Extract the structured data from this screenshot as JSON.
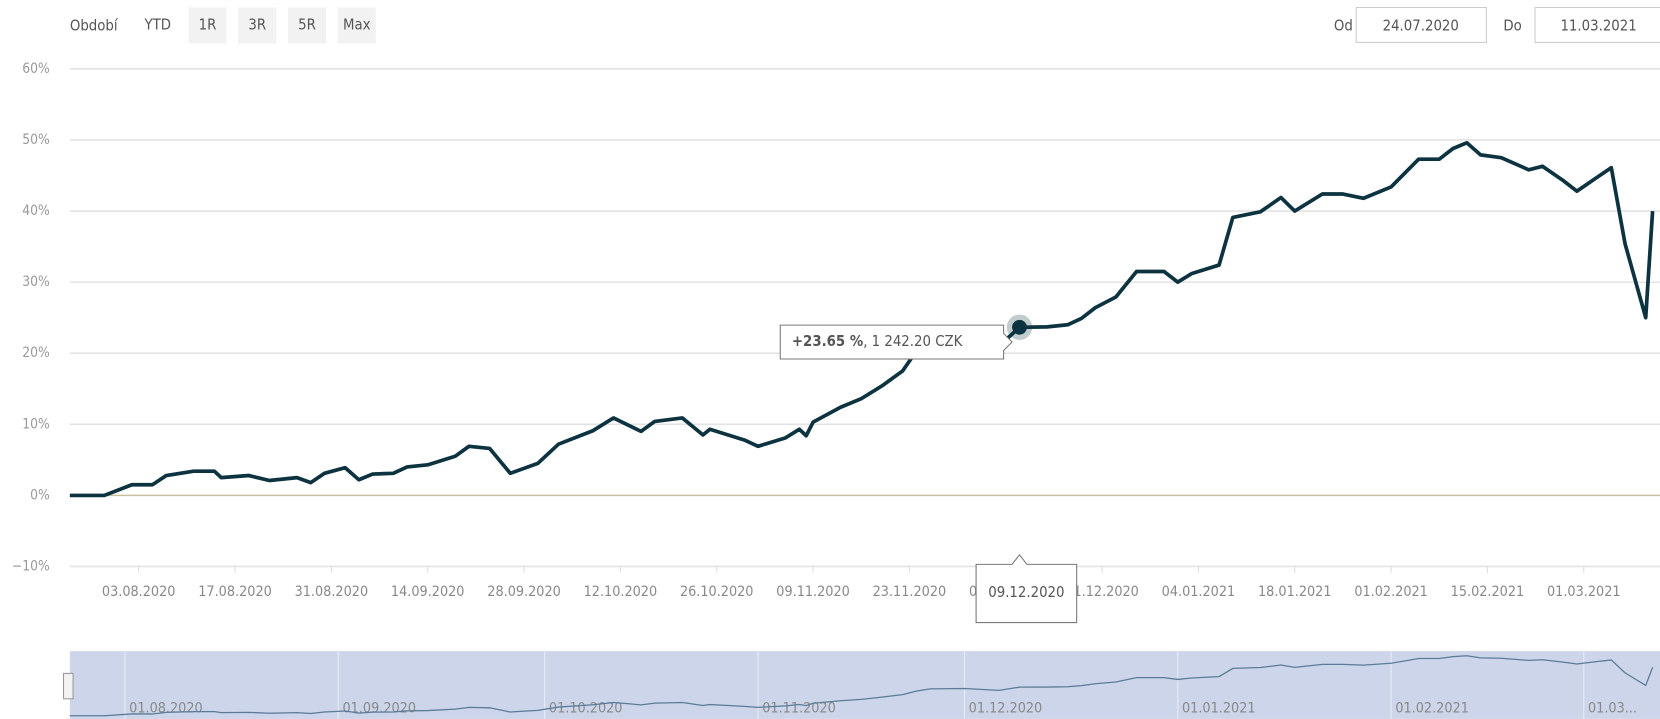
{
  "controls": {
    "period_label": "Období",
    "buttons": [
      "YTD",
      "1R",
      "3R",
      "5R",
      "Max"
    ],
    "active_button": "YTD",
    "from_label": "Od",
    "from": "24.07.2020",
    "to_label": "Do",
    "to": "11.03.2021"
  },
  "chart_data": {
    "type": "line",
    "x": [
      "24.07.2020",
      "29.07.2020",
      "02.08.2020",
      "05.08.2020",
      "07.08.2020",
      "11.08.2020",
      "14.08.2020",
      "15.08.2020",
      "19.08.2020",
      "22.08.2020",
      "26.08.2020",
      "28.08.2020",
      "30.08.2020",
      "02.09.2020",
      "04.09.2020",
      "06.09.2020",
      "09.09.2020",
      "11.09.2020",
      "14.09.2020",
      "18.09.2020",
      "20.09.2020",
      "23.09.2020",
      "26.09.2020",
      "30.09.2020",
      "03.10.2020",
      "08.10.2020",
      "11.10.2020",
      "15.10.2020",
      "17.10.2020",
      "21.10.2020",
      "24.10.2020",
      "25.10.2020",
      "30.10.2020",
      "01.11.2020",
      "05.11.2020",
      "07.11.2020",
      "08.11.2020",
      "09.11.2020",
      "13.11.2020",
      "16.11.2020",
      "19.11.2020",
      "22.11.2020",
      "24.11.2020",
      "26.11.2020",
      "01.12.2020",
      "06.12.2020",
      "09.12.2020",
      "13.12.2020",
      "16.12.2020",
      "18.12.2020",
      "20.12.2020",
      "23.12.2020",
      "26.12.2020",
      "30.12.2020",
      "01.01.2021",
      "03.01.2021",
      "07.01.2021",
      "09.01.2021",
      "13.01.2021",
      "16.01.2021",
      "18.01.2021",
      "22.01.2021",
      "25.01.2021",
      "28.01.2021",
      "01.02.2021",
      "05.02.2021",
      "08.02.2021",
      "10.02.2021",
      "12.02.2021",
      "14.02.2021",
      "17.02.2021",
      "21.02.2021",
      "23.02.2021",
      "26.02.2021",
      "28.02.2021",
      "03.03.2021",
      "05.03.2021",
      "07.03.2021",
      "10.03.2021",
      "11.03.2021"
    ],
    "series": [
      {
        "color": "#0d3340",
        "values": [
          0,
          0,
          1.5,
          1.5,
          2.8,
          3.4,
          3.4,
          2.5,
          2.8,
          2.1,
          2.5,
          1.8,
          3.1,
          3.9,
          2.2,
          3.0,
          3.1,
          4.0,
          4.3,
          5.5,
          6.9,
          6.6,
          3.1,
          4.5,
          7.2,
          9.1,
          10.9,
          9.0,
          10.4,
          10.9,
          8.5,
          9.3,
          7.8,
          6.9,
          8.1,
          9.3,
          8.4,
          10.3,
          12.4,
          13.6,
          15.4,
          17.5,
          20.3,
          22.2,
          22.5,
          21.0,
          23.65,
          23.7,
          24.0,
          24.9,
          26.4,
          27.9,
          31.5,
          31.5,
          30.0,
          31.2,
          32.4,
          39.1,
          39.9,
          41.9,
          40.0,
          42.4,
          42.4,
          41.8,
          43.4,
          47.3,
          47.3,
          48.8,
          49.6,
          47.9,
          47.5,
          45.8,
          46.3,
          44.3,
          42.8,
          44.8,
          46.1,
          35.4,
          25.0,
          40.0
        ]
      }
    ],
    "xlim": [
      "24.07.2020",
      "11.03.2021"
    ],
    "xticks": [
      "03.08.2020",
      "17.08.2020",
      "31.08.2020",
      "14.09.2020",
      "28.09.2020",
      "12.10.2020",
      "26.10.2020",
      "09.11.2020",
      "23.11.2020",
      "07.12.2020",
      "21.12.2020",
      "04.01.2021",
      "18.01.2021",
      "01.02.2021",
      "15.02.2021",
      "01.03.2021"
    ],
    "ylim": [
      -10,
      60
    ],
    "yticks": [
      {
        "value": -10,
        "label": "−10%"
      },
      {
        "value": 0,
        "label": "0%"
      },
      {
        "value": 10,
        "label": "10%"
      },
      {
        "value": 20,
        "label": "20%"
      },
      {
        "value": 30,
        "label": "30%"
      },
      {
        "value": 40,
        "label": "40%"
      },
      {
        "value": 50,
        "label": "50%"
      },
      {
        "value": 60,
        "label": "60%"
      }
    ],
    "grid": true,
    "tooltip": {
      "x": "09.12.2020",
      "value": 23.65,
      "value_label": "+23.65 %",
      "price_label": ", 1 242.20 CZK"
    },
    "navigator": {
      "xticks": [
        "01.08.2020",
        "01.09.2020",
        "01.10.2020",
        "01.11.2020",
        "01.12.2020",
        "01.01.2021",
        "01.02.2021",
        {
          "value": "01.03.2021",
          "label": "01.03..."
        }
      ]
    }
  }
}
